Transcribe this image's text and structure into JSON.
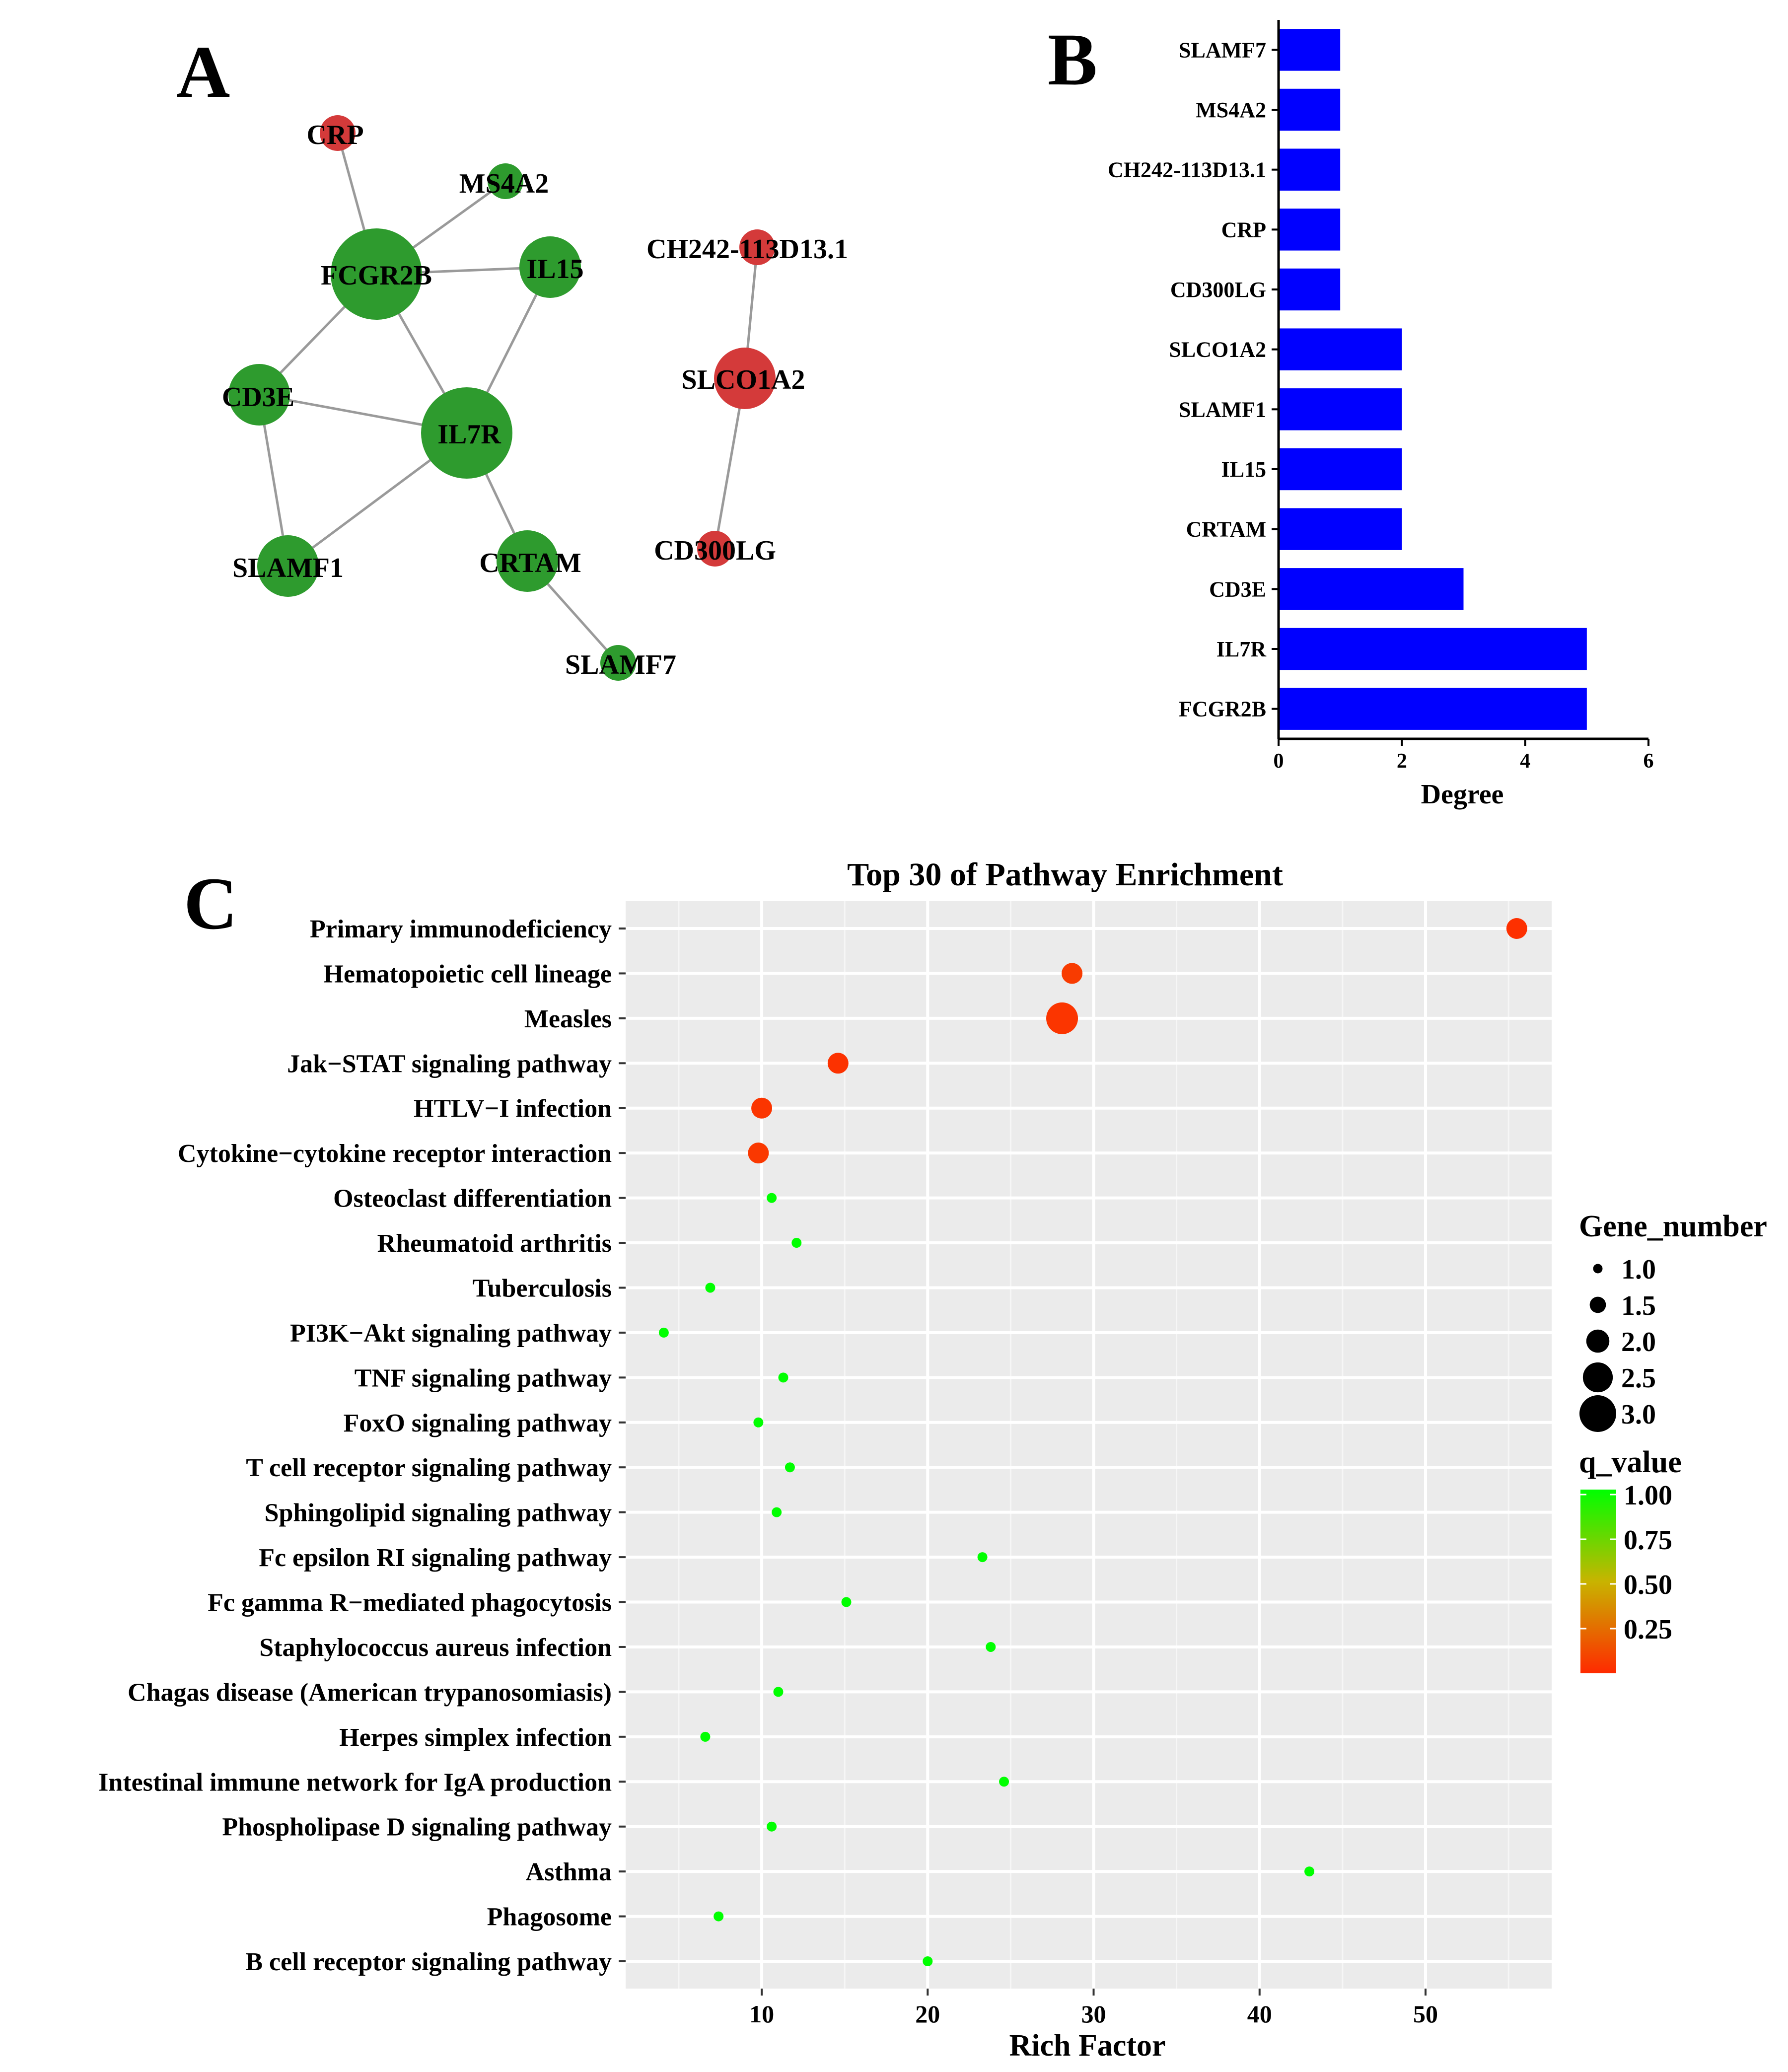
{
  "panels": {
    "a": "A",
    "b": "B",
    "c": "C"
  },
  "colors": {
    "green": "#2e9b2e",
    "red": "#d43a3a",
    "bar": "#0000ff",
    "edge": "#9a9a9a",
    "panel_bg": "#ebebeb",
    "grid": "#ffffff"
  },
  "network": {
    "nodes": [
      {
        "id": "CRP",
        "label": "CRP",
        "color": "red",
        "size": "small"
      },
      {
        "id": "MS4A2",
        "label": "MS4A2",
        "color": "green",
        "size": "small"
      },
      {
        "id": "FCGR2B",
        "label": "FCGR2B",
        "color": "green",
        "size": "large"
      },
      {
        "id": "IL15",
        "label": "IL15",
        "color": "green",
        "size": "medium"
      },
      {
        "id": "CD3E",
        "label": "CD3E",
        "color": "green",
        "size": "medium"
      },
      {
        "id": "IL7R",
        "label": "IL7R",
        "color": "green",
        "size": "large"
      },
      {
        "id": "SLAMF1",
        "label": "SLAMF1",
        "color": "green",
        "size": "medium"
      },
      {
        "id": "CRTAM",
        "label": "CRTAM",
        "color": "green",
        "size": "medium"
      },
      {
        "id": "SLAMF7",
        "label": "SLAMF7",
        "color": "green",
        "size": "small"
      },
      {
        "id": "CH242-113D13.1",
        "label": "CH242-113D13.1",
        "color": "red",
        "size": "small"
      },
      {
        "id": "SLCO1A2",
        "label": "SLCO1A2",
        "color": "red",
        "size": "medium"
      },
      {
        "id": "CD300LG",
        "label": "CD300LG",
        "color": "red",
        "size": "small"
      }
    ],
    "edges": [
      [
        "CRP",
        "FCGR2B"
      ],
      [
        "MS4A2",
        "FCGR2B"
      ],
      [
        "FCGR2B",
        "IL15"
      ],
      [
        "FCGR2B",
        "CD3E"
      ],
      [
        "FCGR2B",
        "IL7R"
      ],
      [
        "IL15",
        "IL7R"
      ],
      [
        "CD3E",
        "IL7R"
      ],
      [
        "CD3E",
        "SLAMF1"
      ],
      [
        "SLAMF1",
        "IL7R"
      ],
      [
        "IL7R",
        "CRTAM"
      ],
      [
        "CRTAM",
        "SLAMF7"
      ],
      [
        "CH242-113D13.1",
        "SLCO1A2"
      ],
      [
        "SLCO1A2",
        "CD300LG"
      ]
    ]
  },
  "chart_data": [
    {
      "type": "bar",
      "orientation": "horizontal",
      "categories": [
        "SLAMF7",
        "MS4A2",
        "CH242-113D13.1",
        "CRP",
        "CD300LG",
        "SLCO1A2",
        "SLAMF1",
        "IL15",
        "CRTAM",
        "CD3E",
        "IL7R",
        "FCGR2B"
      ],
      "values": [
        1,
        1,
        1,
        1,
        1,
        2,
        2,
        2,
        2,
        3,
        5,
        5
      ],
      "xlabel": "Degree",
      "xlim": [
        0,
        6
      ],
      "xticks": [
        0,
        2,
        4,
        6
      ]
    },
    {
      "type": "scatter",
      "title": "Top 30 of Pathway Enrichment",
      "xlabel": "Rich Factor",
      "xlim": [
        1.8,
        57.6
      ],
      "xticks": [
        10,
        20,
        30,
        40,
        50
      ],
      "categories": [
        "Primary immunodeficiency",
        "Hematopoietic cell lineage",
        "Measles",
        "Jak−STAT signaling pathway",
        "HTLV−I infection",
        "Cytokine−cytokine receptor interaction",
        "Osteoclast differentiation",
        "Rheumatoid arthritis",
        "Tuberculosis",
        "PI3K−Akt signaling pathway",
        "TNF signaling pathway",
        "FoxO signaling pathway",
        "T cell receptor signaling pathway",
        "Sphingolipid signaling pathway",
        "Fc epsilon RI signaling pathway",
        "Fc gamma R−mediated phagocytosis",
        "Staphylococcus aureus infection",
        "Chagas disease (American trypanosomiasis)",
        "Herpes simplex infection",
        "Intestinal immune network for IgA production",
        "Phospholipase D signaling pathway",
        "Asthma",
        "Phagosome",
        "B cell receptor signaling pathway"
      ],
      "rich_factor": [
        55.5,
        28.7,
        28.1,
        14.6,
        10.0,
        9.8,
        10.6,
        12.1,
        6.9,
        4.1,
        11.3,
        9.8,
        11.7,
        10.9,
        23.3,
        15.1,
        23.8,
        11.0,
        6.6,
        24.6,
        10.6,
        43.0,
        7.4,
        20.0
      ],
      "gene_number": [
        2,
        2,
        3,
        2,
        2,
        2,
        1,
        1,
        1,
        1,
        1,
        1,
        1,
        1,
        1,
        1,
        1,
        1,
        1,
        1,
        1,
        1,
        1,
        1
      ],
      "q_value": [
        0.02,
        0.06,
        0.04,
        0.03,
        0.04,
        0.05,
        1,
        1,
        1,
        1,
        1,
        1,
        1,
        1,
        1,
        1,
        1,
        1,
        1,
        1,
        1,
        1,
        1,
        1
      ],
      "legend_size": {
        "title": "Gene_number",
        "labels": [
          "1.0",
          "1.5",
          "2.0",
          "2.5",
          "3.0"
        ],
        "values": [
          1.0,
          1.5,
          2.0,
          2.5,
          3.0
        ]
      },
      "legend_color": {
        "title": "q_value",
        "labels": [
          "1.00",
          "0.75",
          "0.50",
          "0.25"
        ],
        "values": [
          1.0,
          0.75,
          0.5,
          0.25
        ],
        "low": "#ff2a00",
        "mid": "#c8c800",
        "high": "#00ff00"
      },
      "grid": true,
      "legend_position": "right"
    }
  ]
}
